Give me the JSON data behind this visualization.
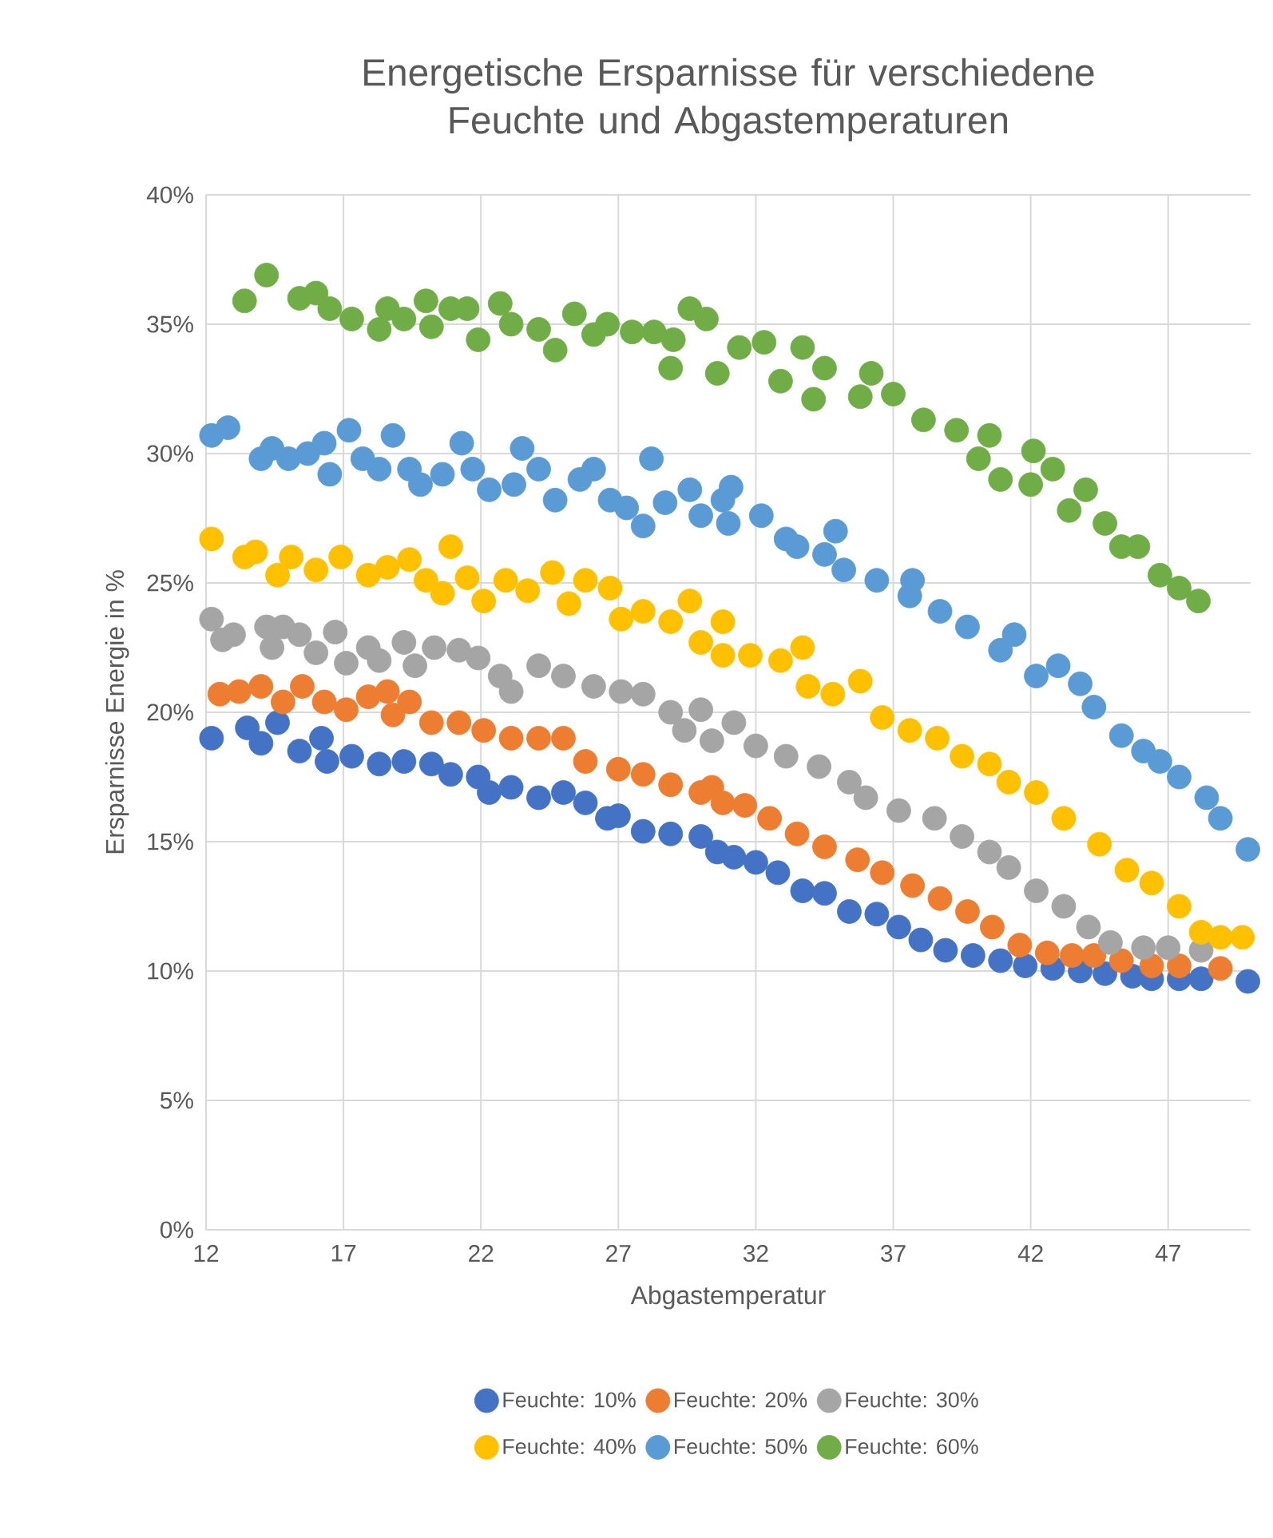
{
  "chart_data": {
    "type": "scatter",
    "title": "Energetische Ersparnisse für verschiedene Feuchte und Abgastemperaturen",
    "xlabel": "Abgastemperatur",
    "ylabel": "Ersparnisse Energie in %",
    "xlim": [
      12,
      50
    ],
    "xticks": [
      12,
      17,
      22,
      27,
      32,
      37,
      42,
      47
    ],
    "ylim": [
      0,
      40
    ],
    "yticks": [
      {
        "value": 0,
        "label": "0%"
      },
      {
        "value": 5,
        "label": "5%"
      },
      {
        "value": 10,
        "label": "10%"
      },
      {
        "value": 15,
        "label": "15%"
      },
      {
        "value": 20,
        "label": "20%"
      },
      {
        "value": 25,
        "label": "25%"
      },
      {
        "value": 30,
        "label": "30%"
      },
      {
        "value": 35,
        "label": "35%"
      },
      {
        "value": 40,
        "label": "40%"
      }
    ],
    "grid": true,
    "legend": "bottom",
    "marker": "circle",
    "series": [
      {
        "name": "Feuchte: 10%",
        "color": "#4472c4",
        "x": [
          12.2,
          13.5,
          14.0,
          14.6,
          15.4,
          16.2,
          16.4,
          17.3,
          18.3,
          19.2,
          20.2,
          20.9,
          21.9,
          22.3,
          23.1,
          24.1,
          25.0,
          25.8,
          26.6,
          27.0,
          27.9,
          28.9,
          30.0,
          30.6,
          31.2,
          32.0,
          32.8,
          33.7,
          34.5,
          35.4,
          36.4,
          37.2,
          38.0,
          38.9,
          39.9,
          40.9,
          41.8,
          42.8,
          43.8,
          44.7,
          45.7,
          46.4,
          47.4,
          48.2,
          49.9
        ],
        "values": [
          19.0,
          19.4,
          18.8,
          19.6,
          18.5,
          19.0,
          18.1,
          18.3,
          18.0,
          18.1,
          18.0,
          17.6,
          17.5,
          16.9,
          17.1,
          16.7,
          16.9,
          16.5,
          15.9,
          16.0,
          15.4,
          15.3,
          15.2,
          14.6,
          14.4,
          14.2,
          13.8,
          13.1,
          13.0,
          12.3,
          12.2,
          11.7,
          11.2,
          10.8,
          10.6,
          10.4,
          10.2,
          10.1,
          10.0,
          9.9,
          9.8,
          9.7,
          9.7,
          9.7,
          9.6
        ]
      },
      {
        "name": "Feuchte: 20%",
        "color": "#ed7d31",
        "x": [
          12.5,
          13.2,
          14.0,
          14.8,
          15.5,
          16.3,
          17.1,
          17.9,
          18.6,
          18.8,
          19.4,
          20.2,
          21.2,
          22.1,
          23.1,
          24.1,
          25.0,
          25.8,
          27.0,
          27.9,
          28.9,
          30.0,
          30.4,
          30.8,
          31.6,
          32.5,
          33.5,
          34.5,
          35.7,
          36.6,
          37.7,
          38.7,
          39.7,
          40.6,
          41.6,
          42.6,
          43.5,
          44.3,
          45.3,
          46.4,
          47.4,
          48.9
        ],
        "values": [
          20.7,
          20.8,
          21.0,
          20.4,
          21.0,
          20.4,
          20.1,
          20.6,
          20.8,
          19.9,
          20.4,
          19.6,
          19.6,
          19.3,
          19.0,
          19.0,
          19.0,
          18.1,
          17.8,
          17.6,
          17.2,
          16.9,
          17.1,
          16.5,
          16.4,
          15.9,
          15.3,
          14.8,
          14.3,
          13.8,
          13.3,
          12.8,
          12.3,
          11.7,
          11.0,
          10.7,
          10.6,
          10.6,
          10.4,
          10.2,
          10.2,
          10.1
        ]
      },
      {
        "name": "Feuchte: 30%",
        "color": "#a5a5a5",
        "x": [
          12.2,
          12.6,
          13.0,
          14.2,
          14.4,
          14.8,
          15.4,
          16.0,
          16.7,
          17.1,
          17.9,
          18.3,
          19.2,
          19.6,
          20.3,
          21.2,
          21.9,
          22.7,
          23.1,
          24.1,
          25.0,
          26.1,
          27.1,
          27.9,
          28.9,
          29.4,
          30.0,
          30.4,
          31.2,
          32.0,
          33.1,
          34.3,
          35.4,
          36.0,
          37.2,
          38.5,
          39.5,
          40.5,
          41.2,
          42.2,
          43.2,
          44.1,
          44.9,
          46.1,
          47.0,
          48.2
        ],
        "values": [
          23.6,
          22.8,
          23.0,
          23.3,
          22.5,
          23.3,
          23.0,
          22.3,
          23.1,
          21.9,
          22.5,
          22.0,
          22.7,
          21.8,
          22.5,
          22.4,
          22.1,
          21.4,
          20.8,
          21.8,
          21.4,
          21.0,
          20.8,
          20.7,
          20.0,
          19.3,
          20.1,
          18.9,
          19.6,
          18.7,
          18.3,
          17.9,
          17.3,
          16.7,
          16.2,
          15.9,
          15.2,
          14.6,
          14.0,
          13.1,
          12.5,
          11.7,
          11.1,
          10.9,
          10.9,
          10.8
        ]
      },
      {
        "name": "Feuchte: 40%",
        "color": "#ffc000",
        "x": [
          12.2,
          13.4,
          13.8,
          14.6,
          15.1,
          16.0,
          16.9,
          17.9,
          18.6,
          19.4,
          20.0,
          20.6,
          20.9,
          21.5,
          22.1,
          22.9,
          23.7,
          24.6,
          25.2,
          25.8,
          26.7,
          27.1,
          27.9,
          28.9,
          29.6,
          30.0,
          30.8,
          30.8,
          31.8,
          32.9,
          33.7,
          33.9,
          34.8,
          35.8,
          36.6,
          37.6,
          38.6,
          39.5,
          40.5,
          41.2,
          42.2,
          43.2,
          44.5,
          45.5,
          46.4,
          47.4,
          48.2,
          48.9,
          49.7
        ],
        "values": [
          26.7,
          26.0,
          26.2,
          25.3,
          26.0,
          25.5,
          26.0,
          25.3,
          25.6,
          25.9,
          25.1,
          24.6,
          26.4,
          25.2,
          24.3,
          25.1,
          24.7,
          25.4,
          24.2,
          25.1,
          24.8,
          23.6,
          23.9,
          23.5,
          24.3,
          22.7,
          23.5,
          22.2,
          22.2,
          22.0,
          22.5,
          21.0,
          20.7,
          21.2,
          19.8,
          19.3,
          19.0,
          18.3,
          18.0,
          17.3,
          16.9,
          15.9,
          14.9,
          13.9,
          13.4,
          12.5,
          11.5,
          11.3,
          11.3
        ]
      },
      {
        "name": "Feuchte: 50%",
        "color": "#5b9bd5",
        "x": [
          12.2,
          12.8,
          14.0,
          14.4,
          15.0,
          15.7,
          16.3,
          16.5,
          17.2,
          17.7,
          18.3,
          18.8,
          19.4,
          19.8,
          20.6,
          21.3,
          21.7,
          22.3,
          23.2,
          23.5,
          24.1,
          24.7,
          25.6,
          26.1,
          26.7,
          27.3,
          27.9,
          28.2,
          28.7,
          29.6,
          30.0,
          30.8,
          31.1,
          31.0,
          32.2,
          33.1,
          33.5,
          34.5,
          34.9,
          35.2,
          36.4,
          37.7,
          37.6,
          38.7,
          39.7,
          41.4,
          40.9,
          42.2,
          43.0,
          43.8,
          44.3,
          45.3,
          46.1,
          46.7,
          47.4,
          48.4,
          48.9,
          49.9
        ],
        "values": [
          30.7,
          31.0,
          29.8,
          30.2,
          29.8,
          30.0,
          30.4,
          29.2,
          30.9,
          29.8,
          29.4,
          30.7,
          29.4,
          28.8,
          29.2,
          30.4,
          29.4,
          28.6,
          28.8,
          30.2,
          29.4,
          28.2,
          29.0,
          29.4,
          28.2,
          27.9,
          27.2,
          29.8,
          28.1,
          28.6,
          27.6,
          28.2,
          28.7,
          27.3,
          27.6,
          26.7,
          26.4,
          26.1,
          27.0,
          25.5,
          25.1,
          25.1,
          24.5,
          23.9,
          23.3,
          23.0,
          22.4,
          21.4,
          21.8,
          21.1,
          20.2,
          19.1,
          18.5,
          18.1,
          17.5,
          16.7,
          15.9,
          14.7
        ]
      },
      {
        "name": "Feuchte: 60%",
        "color": "#70ad47",
        "x": [
          13.4,
          14.2,
          15.4,
          16.0,
          16.5,
          17.3,
          18.3,
          18.6,
          19.2,
          20.0,
          20.2,
          20.9,
          21.5,
          21.9,
          22.7,
          23.1,
          24.1,
          24.7,
          25.4,
          26.1,
          26.6,
          27.5,
          28.3,
          29.0,
          28.9,
          29.6,
          30.2,
          30.6,
          31.4,
          32.3,
          32.9,
          33.7,
          34.5,
          34.1,
          36.2,
          35.8,
          37.0,
          38.1,
          39.3,
          40.5,
          40.1,
          40.9,
          42.1,
          42.0,
          42.8,
          43.4,
          44.0,
          44.7,
          45.3,
          45.9,
          46.7,
          47.4,
          48.1
        ],
        "values": [
          35.9,
          36.9,
          36.0,
          36.2,
          35.6,
          35.2,
          34.8,
          35.6,
          35.2,
          35.9,
          34.9,
          35.6,
          35.6,
          34.4,
          35.8,
          35.0,
          34.8,
          34.0,
          35.4,
          34.6,
          35.0,
          34.7,
          34.7,
          34.4,
          33.3,
          35.6,
          35.2,
          33.1,
          34.1,
          34.3,
          32.8,
          34.1,
          33.3,
          32.1,
          33.1,
          32.2,
          32.3,
          31.3,
          30.9,
          30.7,
          29.8,
          29.0,
          30.1,
          28.8,
          29.4,
          27.8,
          28.6,
          27.3,
          26.4,
          26.4,
          25.3,
          24.8,
          24.3
        ]
      }
    ]
  }
}
